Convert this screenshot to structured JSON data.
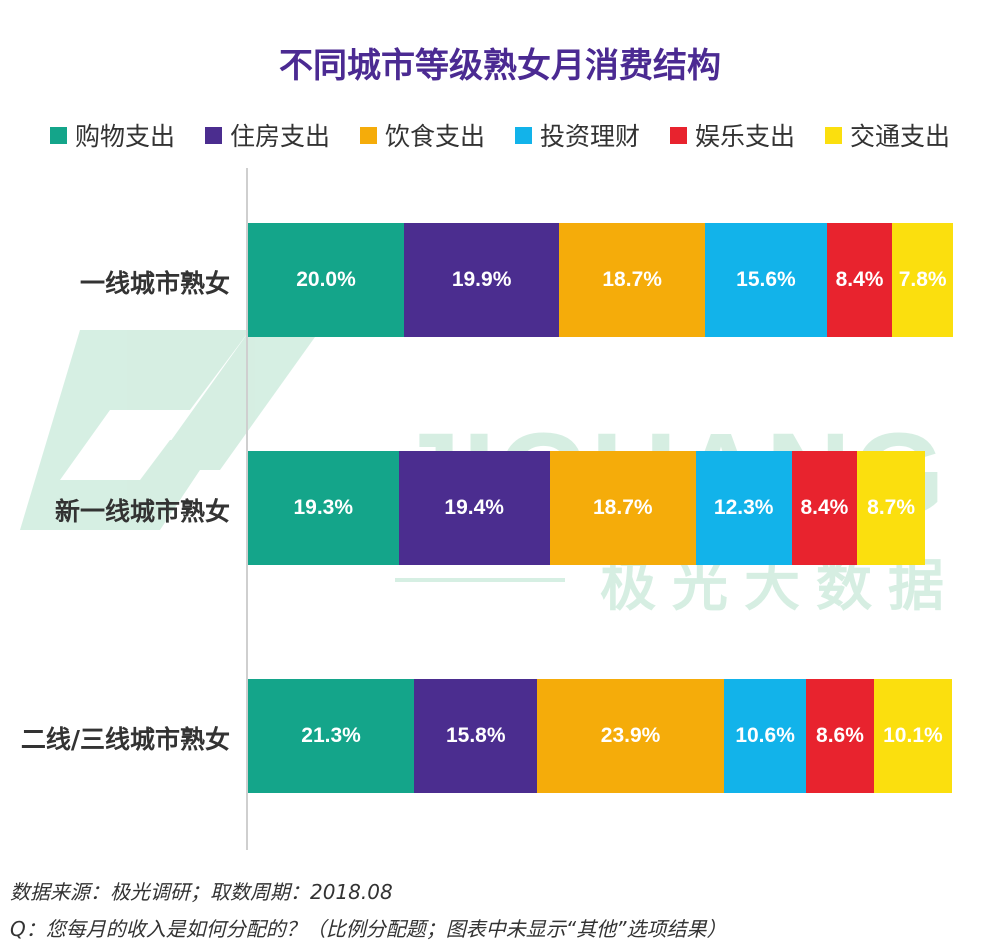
{
  "watermark": {
    "brand": "JIGUANG",
    "cn": "极光大数据"
  },
  "chart_data": {
    "type": "bar",
    "orientation": "horizontal",
    "stacked": true,
    "title": "不同城市等级熟女月消费结构",
    "categories": [
      "一线城市熟女",
      "新一线城市熟女",
      "二线/三线城市熟女"
    ],
    "series": [
      {
        "name": "购物支出",
        "color": "#14a58a",
        "values": [
          20.0,
          19.3,
          21.3
        ],
        "labels": [
          "20.0%",
          "19.3%",
          "21.3%"
        ]
      },
      {
        "name": "住房支出",
        "color": "#4b2d8f",
        "values": [
          19.9,
          19.4,
          15.8
        ],
        "labels": [
          "19.9%",
          "19.4%",
          "15.8%"
        ]
      },
      {
        "name": "饮食支出",
        "color": "#f5ac0a",
        "values": [
          18.7,
          18.7,
          23.9
        ],
        "labels": [
          "18.7%",
          "18.7%",
          "23.9%"
        ]
      },
      {
        "name": "投资理财",
        "color": "#12b3ea",
        "values": [
          15.6,
          12.3,
          10.6
        ],
        "labels": [
          "15.6%",
          "12.3%",
          "10.6%"
        ]
      },
      {
        "name": "娱乐支出",
        "color": "#e8232e",
        "values": [
          8.4,
          8.4,
          8.6
        ],
        "labels": [
          "8.4%",
          "8.4%",
          "8.6%"
        ]
      },
      {
        "name": "交通支出",
        "color": "#fbdf0e",
        "values": [
          7.8,
          8.7,
          10.1
        ],
        "labels": [
          "7.8%",
          "8.7%",
          "10.1%"
        ]
      }
    ],
    "legend_position": "top",
    "grid": false
  },
  "footer": {
    "source": "数据来源：极光调研；取数周期：2018.08",
    "question": "Q：您每月的收入是如何分配的？（比例分配题；图表中未显示“其他”选项结果）"
  }
}
